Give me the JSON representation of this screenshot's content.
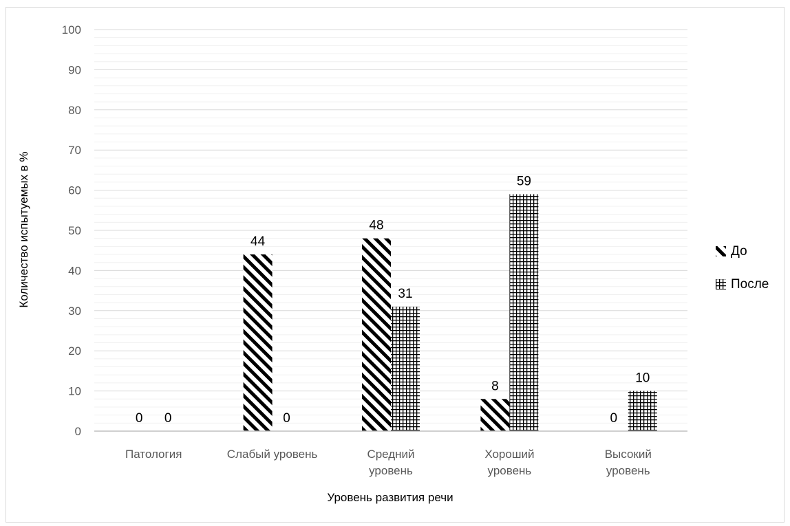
{
  "chart_data": {
    "type": "bar",
    "title": "",
    "xlabel": "Уровень развития речи",
    "ylabel": "Количество испытуемых в %",
    "ylim": [
      0,
      100
    ],
    "yticks": [
      "0",
      "10",
      "20",
      "30",
      "40",
      "50",
      "60",
      "70",
      "80",
      "90",
      "100"
    ],
    "categories": [
      [
        "Патология"
      ],
      [
        "Слабый уровень"
      ],
      [
        "Средний",
        "уровень"
      ],
      [
        "Хороший",
        "уровень"
      ],
      [
        "Высокий",
        "уровень"
      ]
    ],
    "series": [
      {
        "name": "До",
        "values": [
          0,
          44,
          48,
          8,
          0
        ],
        "pattern": "diagonal",
        "color": "#000000"
      },
      {
        "name": "После",
        "values": [
          0,
          0,
          31,
          59,
          10
        ],
        "pattern": "grid",
        "color": "#000000"
      }
    ],
    "grid": true,
    "legend": "right"
  }
}
